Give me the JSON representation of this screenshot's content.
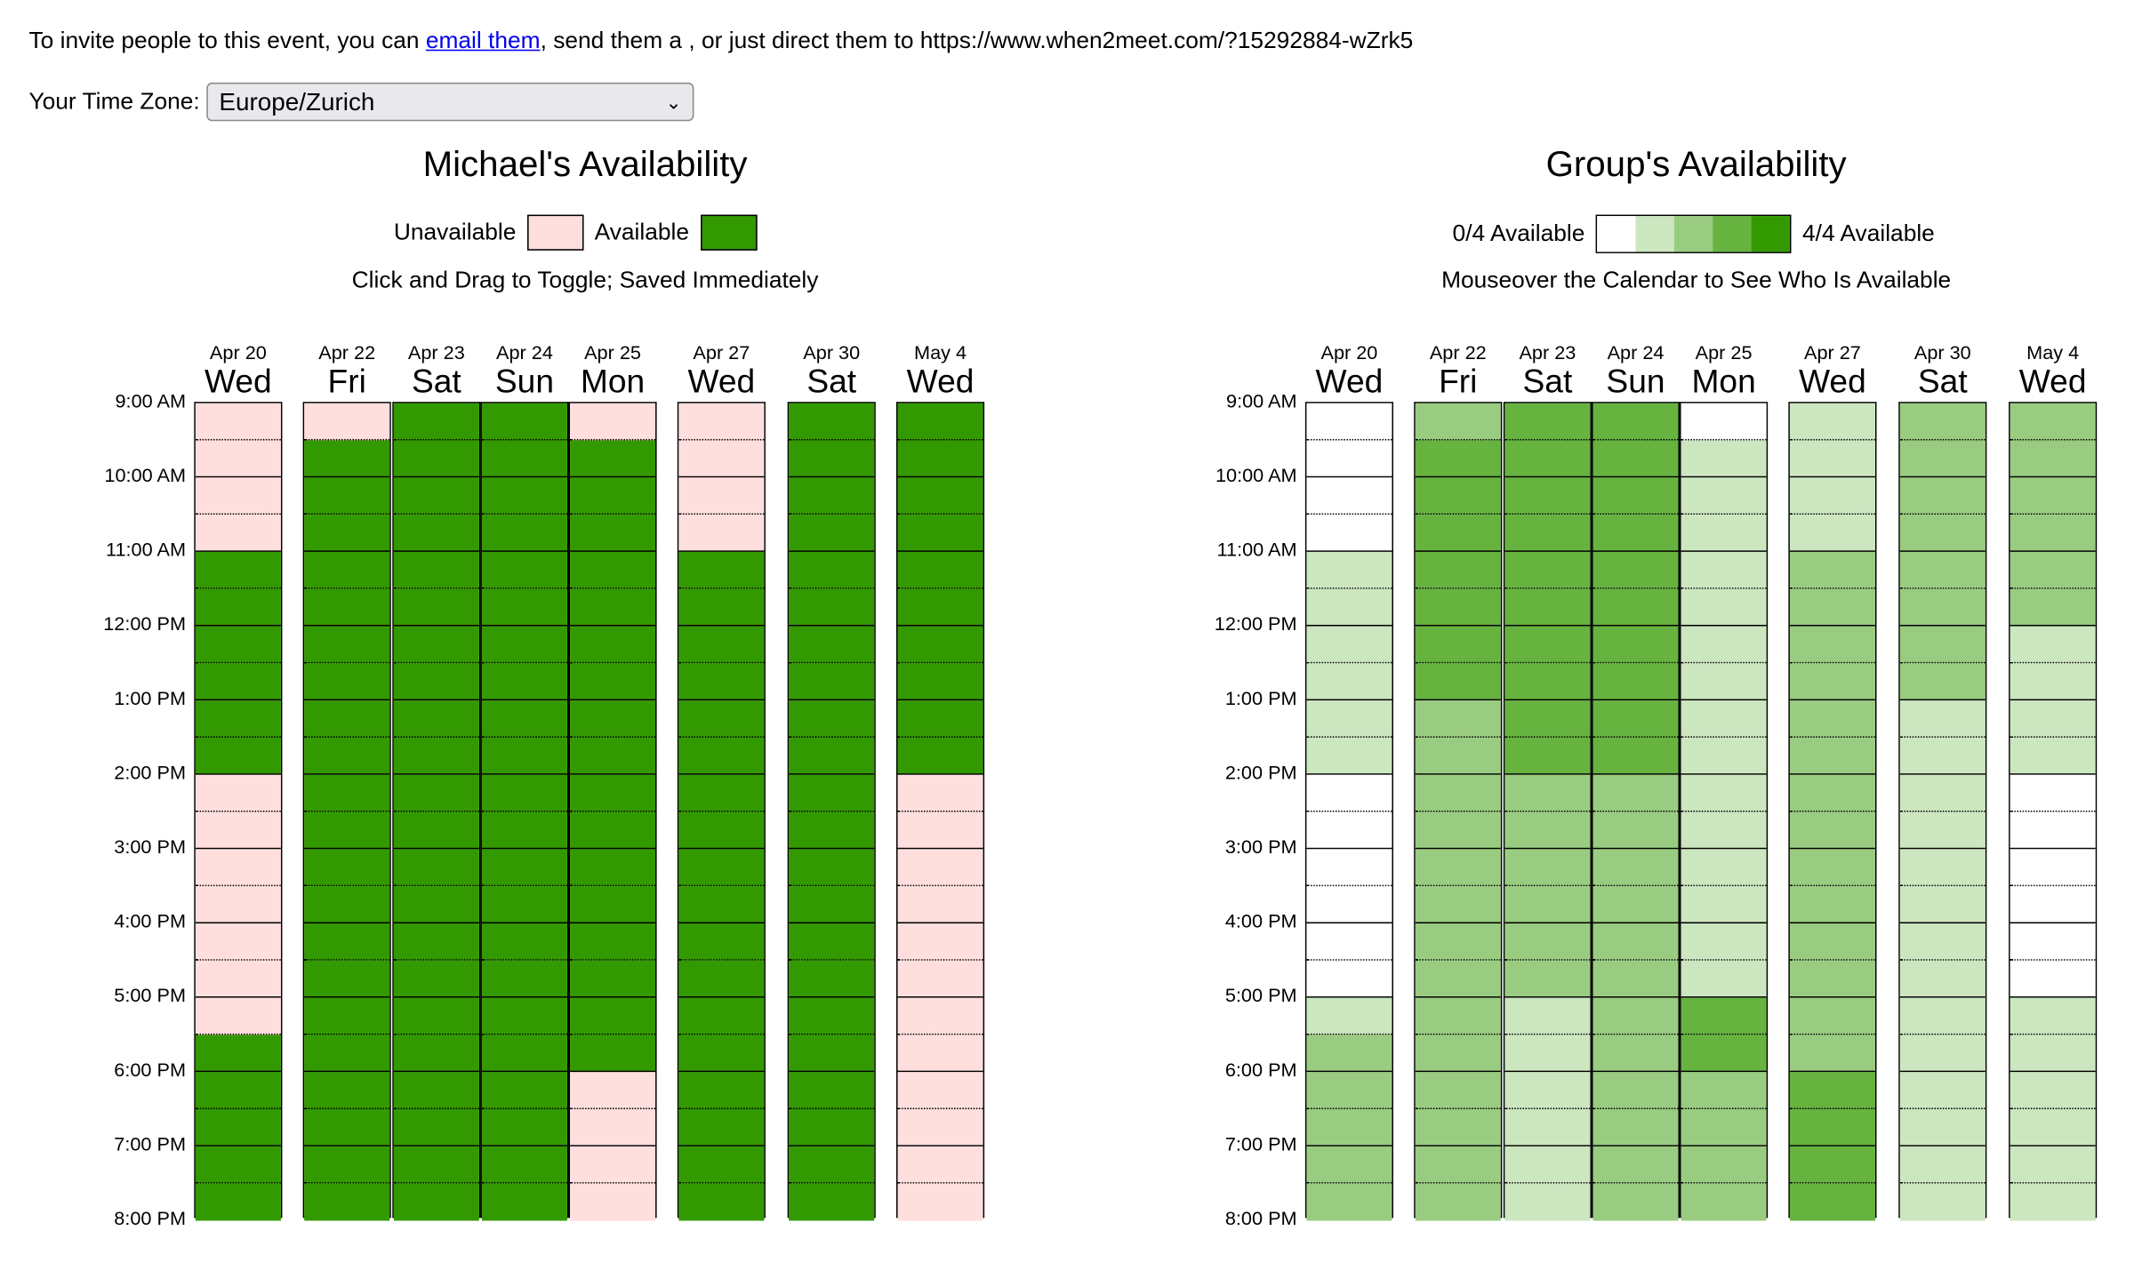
{
  "invite": {
    "prefix": "To invite people to this event, you can ",
    "link": "email them",
    "suffix": ", send them a , or just direct them to https://www.when2meet.com/?15292884-wZrk5"
  },
  "timezone": {
    "label": "Your Time Zone:",
    "value": "Europe/Zurich"
  },
  "personal": {
    "title": "Michael's Availability",
    "unavailable_label": "Unavailable",
    "available_label": "Available",
    "hint": "Click and Drag to Toggle; Saved Immediately"
  },
  "group": {
    "title": "Group's Availability",
    "min_label": "0/4 Available",
    "max_label": "4/4 Available",
    "hint": "Mouseover the Calendar to See Who Is Available"
  },
  "colors": {
    "unavailable": "#ffdede",
    "available": "#339900",
    "levels": [
      "#ffffff",
      "#cce6c0",
      "#99cc80",
      "#66b340",
      "#339900"
    ]
  },
  "times": [
    "9:00 AM",
    "10:00 AM",
    "11:00 AM",
    "12:00 PM",
    "1:00 PM",
    "2:00 PM",
    "3:00 PM",
    "4:00 PM",
    "5:00 PM",
    "6:00 PM",
    "7:00 PM",
    "8:00 PM"
  ],
  "days": [
    {
      "date": "Apr 20",
      "weekday": "Wed"
    },
    {
      "date": "Apr 22",
      "weekday": "Fri"
    },
    {
      "date": "Apr 23",
      "weekday": "Sat"
    },
    {
      "date": "Apr 24",
      "weekday": "Sun"
    },
    {
      "date": "Apr 25",
      "weekday": "Mon"
    },
    {
      "date": "Apr 27",
      "weekday": "Wed"
    },
    {
      "date": "Apr 30",
      "weekday": "Sat"
    },
    {
      "date": "May 4",
      "weekday": "Wed"
    }
  ],
  "personal_availability": [
    [
      0,
      0,
      0,
      0,
      1,
      1,
      1,
      1,
      1,
      1,
      0,
      0,
      0,
      0,
      0,
      0,
      0,
      1,
      1,
      1,
      1,
      1
    ],
    [
      0,
      1,
      1,
      1,
      1,
      1,
      1,
      1,
      1,
      1,
      1,
      1,
      1,
      1,
      1,
      1,
      1,
      1,
      1,
      1,
      1,
      1
    ],
    [
      1,
      1,
      1,
      1,
      1,
      1,
      1,
      1,
      1,
      1,
      1,
      1,
      1,
      1,
      1,
      1,
      1,
      1,
      1,
      1,
      1,
      1
    ],
    [
      1,
      1,
      1,
      1,
      1,
      1,
      1,
      1,
      1,
      1,
      1,
      1,
      1,
      1,
      1,
      1,
      1,
      1,
      1,
      1,
      1,
      1
    ],
    [
      0,
      1,
      1,
      1,
      1,
      1,
      1,
      1,
      1,
      1,
      1,
      1,
      1,
      1,
      1,
      1,
      1,
      1,
      0,
      0,
      0,
      0
    ],
    [
      0,
      0,
      0,
      0,
      1,
      1,
      1,
      1,
      1,
      1,
      1,
      1,
      1,
      1,
      1,
      1,
      1,
      1,
      1,
      1,
      1,
      1
    ],
    [
      1,
      1,
      1,
      1,
      1,
      1,
      1,
      1,
      1,
      1,
      1,
      1,
      1,
      1,
      1,
      1,
      1,
      1,
      1,
      1,
      1,
      1
    ],
    [
      1,
      1,
      1,
      1,
      1,
      1,
      1,
      1,
      1,
      1,
      0,
      0,
      0,
      0,
      0,
      0,
      0,
      0,
      0,
      0,
      0,
      0
    ]
  ],
  "group_availability": [
    [
      0,
      0,
      0,
      0,
      1,
      1,
      1,
      1,
      1,
      1,
      0,
      0,
      0,
      0,
      0,
      0,
      1,
      2,
      2,
      2,
      2,
      2
    ],
    [
      2,
      3,
      3,
      3,
      3,
      3,
      3,
      3,
      2,
      2,
      2,
      2,
      2,
      2,
      2,
      2,
      2,
      2,
      2,
      2,
      2,
      2
    ],
    [
      3,
      3,
      3,
      3,
      3,
      3,
      3,
      3,
      3,
      3,
      2,
      2,
      2,
      2,
      2,
      2,
      1,
      1,
      1,
      1,
      1,
      1
    ],
    [
      3,
      3,
      3,
      3,
      3,
      3,
      3,
      3,
      3,
      3,
      2,
      2,
      2,
      2,
      2,
      2,
      2,
      2,
      2,
      2,
      2,
      2
    ],
    [
      0,
      1,
      1,
      1,
      1,
      1,
      1,
      1,
      1,
      1,
      1,
      1,
      1,
      1,
      1,
      1,
      3,
      3,
      2,
      2,
      2,
      2
    ],
    [
      1,
      1,
      1,
      1,
      2,
      2,
      2,
      2,
      2,
      2,
      2,
      2,
      2,
      2,
      2,
      2,
      2,
      2,
      3,
      3,
      3,
      3
    ],
    [
      2,
      2,
      2,
      2,
      2,
      2,
      2,
      2,
      1,
      1,
      1,
      1,
      1,
      1,
      1,
      1,
      1,
      1,
      1,
      1,
      1,
      1
    ],
    [
      2,
      2,
      2,
      2,
      2,
      2,
      1,
      1,
      1,
      1,
      0,
      0,
      0,
      0,
      0,
      0,
      1,
      1,
      1,
      1,
      1,
      1
    ]
  ]
}
